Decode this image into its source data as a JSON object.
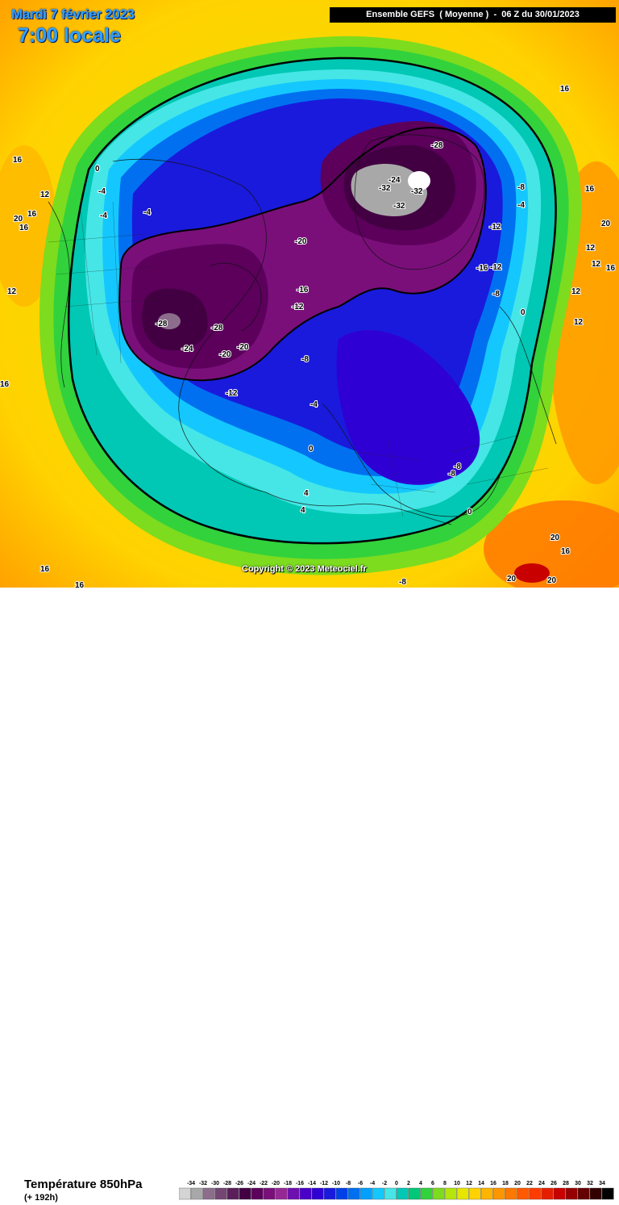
{
  "header": {
    "date": "Mardi 7 février 2023",
    "time": "7:00 locale",
    "model": "Ensemble GEFS  ( Moyenne )  -  06 Z du 30/01/2023"
  },
  "footer": {
    "parameter": "Température 850hPa",
    "step": "(+ 192h)"
  },
  "copyright": "Copyright © 2023 Meteociel.fr",
  "color_scale": {
    "labels": [
      "-34",
      "-32",
      "-30",
      "-28",
      "-26",
      "-24",
      "-22",
      "-20",
      "-18",
      "-16",
      "-14",
      "-12",
      "-10",
      "-8",
      "-6",
      "-4",
      "-2",
      "0",
      "2",
      "4",
      "6",
      "8",
      "10",
      "12",
      "14",
      "16",
      "18",
      "20",
      "22",
      "24",
      "26",
      "28",
      "30",
      "32",
      "34"
    ],
    "colors": [
      "#d4d4d4",
      "#a8a8a8",
      "#8c6e8c",
      "#734673",
      "#5a1e5a",
      "#420042",
      "#5c005c",
      "#7a0f7a",
      "#962896",
      "#6e0fb0",
      "#4a00c8",
      "#2f00d4",
      "#1a1adc",
      "#0040e8",
      "#0070f0",
      "#00a0ff",
      "#14c8ff",
      "#46e6e6",
      "#00c8b4",
      "#00c878",
      "#32d23c",
      "#7ddc1e",
      "#b4e60a",
      "#e6e600",
      "#ffd200",
      "#ffb400",
      "#ff9600",
      "#ff7800",
      "#ff5a00",
      "#ff3c00",
      "#e61e00",
      "#c80000",
      "#960000",
      "#640000",
      "#320000",
      "#000000"
    ]
  },
  "contour_labels": [
    {
      "t": "-28"
    },
    {
      "t": "-24"
    },
    {
      "t": "-32"
    },
    {
      "t": "-32"
    },
    {
      "t": "-32"
    },
    {
      "t": "-20"
    },
    {
      "t": "-28"
    },
    {
      "t": "-28"
    },
    {
      "t": "-24"
    },
    {
      "t": "-20"
    },
    {
      "t": "-20"
    },
    {
      "t": "-16"
    },
    {
      "t": "-12"
    },
    {
      "t": "-8"
    },
    {
      "t": "-4"
    },
    {
      "t": "0"
    },
    {
      "t": "-12"
    },
    {
      "t": "-12"
    },
    {
      "t": "-16"
    },
    {
      "t": "-12"
    },
    {
      "t": "-8"
    },
    {
      "t": "-8"
    },
    {
      "t": "-4"
    },
    {
      "t": "0"
    },
    {
      "t": "4"
    },
    {
      "t": "4"
    },
    {
      "t": "-4"
    },
    {
      "t": "-4"
    },
    {
      "t": "-4"
    },
    {
      "t": "0"
    },
    {
      "t": "-8"
    },
    {
      "t": "-8"
    },
    {
      "t": "0"
    },
    {
      "t": "16"
    },
    {
      "t": "12"
    },
    {
      "t": "16"
    },
    {
      "t": "20"
    },
    {
      "t": "16"
    },
    {
      "t": "12"
    },
    {
      "t": "16"
    },
    {
      "t": "16"
    },
    {
      "t": "16"
    },
    {
      "t": "20"
    },
    {
      "t": "12"
    },
    {
      "t": "12"
    },
    {
      "t": "16"
    },
    {
      "t": "12"
    },
    {
      "t": "20"
    },
    {
      "t": "16"
    },
    {
      "t": "20"
    },
    {
      "t": "20"
    },
    {
      "t": "16"
    },
    {
      "t": "-8"
    },
    {
      "t": "12"
    },
    {
      "t": "16"
    }
  ],
  "legend_visible": true
}
